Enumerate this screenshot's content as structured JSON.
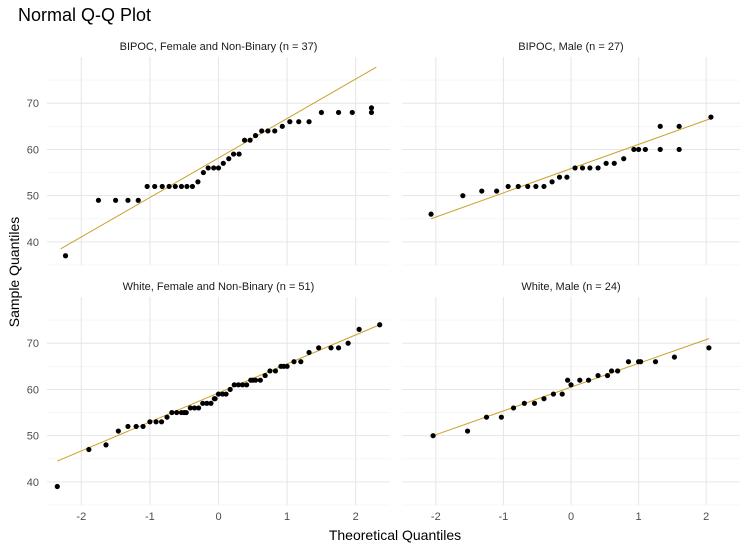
{
  "chart_data": {
    "type": "scatter",
    "title": "Normal Q-Q Plot",
    "xlabel": "Theoretical Quantiles",
    "ylabel": "Sample Quantiles",
    "xlim": [
      -2.5,
      2.5
    ],
    "ylim": [
      35,
      80
    ],
    "x_ticks": [
      -2,
      -1,
      0,
      1,
      2
    ],
    "y_ticks": [
      40,
      50,
      60,
      70
    ],
    "grid": true,
    "point_color": "#000000",
    "line_color": "#c9a227",
    "panels": [
      {
        "label": "BIPOC, Female and Non-Binary (n = 37)",
        "line": {
          "x": [
            -2.3,
            2.3
          ],
          "y": [
            38.5,
            77.8
          ]
        },
        "points": [
          {
            "x": -2.23,
            "y": 37
          },
          {
            "x": -1.75,
            "y": 49
          },
          {
            "x": -1.5,
            "y": 49
          },
          {
            "x": -1.32,
            "y": 49
          },
          {
            "x": -1.17,
            "y": 49
          },
          {
            "x": -1.04,
            "y": 52
          },
          {
            "x": -0.93,
            "y": 52
          },
          {
            "x": -0.82,
            "y": 52
          },
          {
            "x": -0.72,
            "y": 52
          },
          {
            "x": -0.63,
            "y": 52
          },
          {
            "x": -0.54,
            "y": 52
          },
          {
            "x": -0.46,
            "y": 52
          },
          {
            "x": -0.38,
            "y": 52
          },
          {
            "x": -0.3,
            "y": 53
          },
          {
            "x": -0.22,
            "y": 55
          },
          {
            "x": -0.15,
            "y": 56
          },
          {
            "x": -0.07,
            "y": 56
          },
          {
            "x": 0.0,
            "y": 56
          },
          {
            "x": 0.07,
            "y": 57
          },
          {
            "x": 0.15,
            "y": 58
          },
          {
            "x": 0.22,
            "y": 59
          },
          {
            "x": 0.3,
            "y": 59
          },
          {
            "x": 0.38,
            "y": 62
          },
          {
            "x": 0.46,
            "y": 62
          },
          {
            "x": 0.54,
            "y": 63
          },
          {
            "x": 0.63,
            "y": 64
          },
          {
            "x": 0.72,
            "y": 64
          },
          {
            "x": 0.82,
            "y": 64
          },
          {
            "x": 0.93,
            "y": 65
          },
          {
            "x": 1.04,
            "y": 66
          },
          {
            "x": 1.17,
            "y": 66
          },
          {
            "x": 1.32,
            "y": 66
          },
          {
            "x": 1.5,
            "y": 68
          },
          {
            "x": 1.75,
            "y": 68
          },
          {
            "x": 2.23,
            "y": 68
          },
          {
            "x": 1.95,
            "y": 68
          },
          {
            "x": 2.23,
            "y": 69
          }
        ]
      },
      {
        "label": "BIPOC, Male (n = 27)",
        "line": {
          "x": [
            -2.07,
            2.07
          ],
          "y": [
            45,
            66.7
          ]
        },
        "points": [
          {
            "x": -2.07,
            "y": 46
          },
          {
            "x": -1.6,
            "y": 50
          },
          {
            "x": -1.32,
            "y": 51
          },
          {
            "x": -1.1,
            "y": 51
          },
          {
            "x": -0.93,
            "y": 52
          },
          {
            "x": -0.78,
            "y": 52
          },
          {
            "x": -0.64,
            "y": 52
          },
          {
            "x": -0.52,
            "y": 52
          },
          {
            "x": -0.4,
            "y": 52
          },
          {
            "x": -0.28,
            "y": 53
          },
          {
            "x": -0.17,
            "y": 54
          },
          {
            "x": -0.06,
            "y": 54
          },
          {
            "x": 0.06,
            "y": 56
          },
          {
            "x": 0.17,
            "y": 56
          },
          {
            "x": 0.28,
            "y": 56
          },
          {
            "x": 0.4,
            "y": 56
          },
          {
            "x": 0.52,
            "y": 57
          },
          {
            "x": 0.64,
            "y": 57
          },
          {
            "x": 0.78,
            "y": 58
          },
          {
            "x": 0.93,
            "y": 60
          },
          {
            "x": 1.1,
            "y": 60
          },
          {
            "x": 1.32,
            "y": 60
          },
          {
            "x": 1.6,
            "y": 60
          },
          {
            "x": 1.32,
            "y": 65
          },
          {
            "x": 1.6,
            "y": 65
          },
          {
            "x": 2.07,
            "y": 67
          },
          {
            "x": 1.0,
            "y": 60
          }
        ]
      },
      {
        "label": "White, Female and Non-Binary (n = 51)",
        "line": {
          "x": [
            -2.35,
            2.35
          ],
          "y": [
            44.5,
            74
          ]
        },
        "points": [
          {
            "x": -2.35,
            "y": 39
          },
          {
            "x": -1.89,
            "y": 47
          },
          {
            "x": -1.64,
            "y": 48
          },
          {
            "x": -1.46,
            "y": 51
          },
          {
            "x": -1.32,
            "y": 52
          },
          {
            "x": -1.2,
            "y": 52
          },
          {
            "x": -1.1,
            "y": 52
          },
          {
            "x": -1.0,
            "y": 53
          },
          {
            "x": -0.91,
            "y": 53
          },
          {
            "x": -0.83,
            "y": 53
          },
          {
            "x": -0.75,
            "y": 54
          },
          {
            "x": -0.68,
            "y": 55
          },
          {
            "x": -0.61,
            "y": 55
          },
          {
            "x": -0.54,
            "y": 55
          },
          {
            "x": -0.47,
            "y": 55
          },
          {
            "x": -0.41,
            "y": 56
          },
          {
            "x": -0.35,
            "y": 56
          },
          {
            "x": -0.29,
            "y": 56
          },
          {
            "x": -0.23,
            "y": 57
          },
          {
            "x": -0.17,
            "y": 57
          },
          {
            "x": -0.11,
            "y": 57
          },
          {
            "x": -0.06,
            "y": 58
          },
          {
            "x": 0.0,
            "y": 59
          },
          {
            "x": 0.06,
            "y": 59
          },
          {
            "x": 0.11,
            "y": 59
          },
          {
            "x": 0.17,
            "y": 60
          },
          {
            "x": 0.23,
            "y": 61
          },
          {
            "x": 0.29,
            "y": 61
          },
          {
            "x": 0.35,
            "y": 61
          },
          {
            "x": 0.41,
            "y": 61
          },
          {
            "x": 0.47,
            "y": 62
          },
          {
            "x": 0.54,
            "y": 62
          },
          {
            "x": 0.61,
            "y": 62
          },
          {
            "x": 0.68,
            "y": 63
          },
          {
            "x": 0.75,
            "y": 64
          },
          {
            "x": 0.83,
            "y": 64
          },
          {
            "x": 0.91,
            "y": 65
          },
          {
            "x": 1.0,
            "y": 65
          },
          {
            "x": 1.1,
            "y": 66
          },
          {
            "x": 1.2,
            "y": 66
          },
          {
            "x": 1.32,
            "y": 68
          },
          {
            "x": 1.46,
            "y": 69
          },
          {
            "x": 1.64,
            "y": 69
          },
          {
            "x": 1.89,
            "y": 70
          },
          {
            "x": 2.05,
            "y": 73
          },
          {
            "x": 2.35,
            "y": 74
          },
          {
            "x": 1.75,
            "y": 69
          },
          {
            "x": 0.5,
            "y": 62
          },
          {
            "x": -0.05,
            "y": 58
          },
          {
            "x": -0.5,
            "y": 55
          },
          {
            "x": 0.95,
            "y": 65
          }
        ]
      },
      {
        "label": "White, Male (n = 24)",
        "line": {
          "x": [
            -2.04,
            2.04
          ],
          "y": [
            50,
            71
          ]
        },
        "points": [
          {
            "x": -2.04,
            "y": 50
          },
          {
            "x": -1.53,
            "y": 51
          },
          {
            "x": -1.25,
            "y": 54
          },
          {
            "x": -1.03,
            "y": 54
          },
          {
            "x": -0.85,
            "y": 56
          },
          {
            "x": -0.69,
            "y": 57
          },
          {
            "x": -0.54,
            "y": 57
          },
          {
            "x": -0.4,
            "y": 58
          },
          {
            "x": -0.26,
            "y": 59
          },
          {
            "x": -0.13,
            "y": 59
          },
          {
            "x": 0.0,
            "y": 61
          },
          {
            "x": 0.13,
            "y": 62
          },
          {
            "x": 0.26,
            "y": 62
          },
          {
            "x": 0.4,
            "y": 63
          },
          {
            "x": 0.54,
            "y": 63
          },
          {
            "x": 0.69,
            "y": 64
          },
          {
            "x": 0.85,
            "y": 66
          },
          {
            "x": 1.03,
            "y": 66
          },
          {
            "x": 1.25,
            "y": 66
          },
          {
            "x": 1.53,
            "y": 67
          },
          {
            "x": 2.04,
            "y": 69
          },
          {
            "x": -0.05,
            "y": 62
          },
          {
            "x": 0.6,
            "y": 64
          },
          {
            "x": 1.0,
            "y": 66
          }
        ]
      }
    ]
  }
}
